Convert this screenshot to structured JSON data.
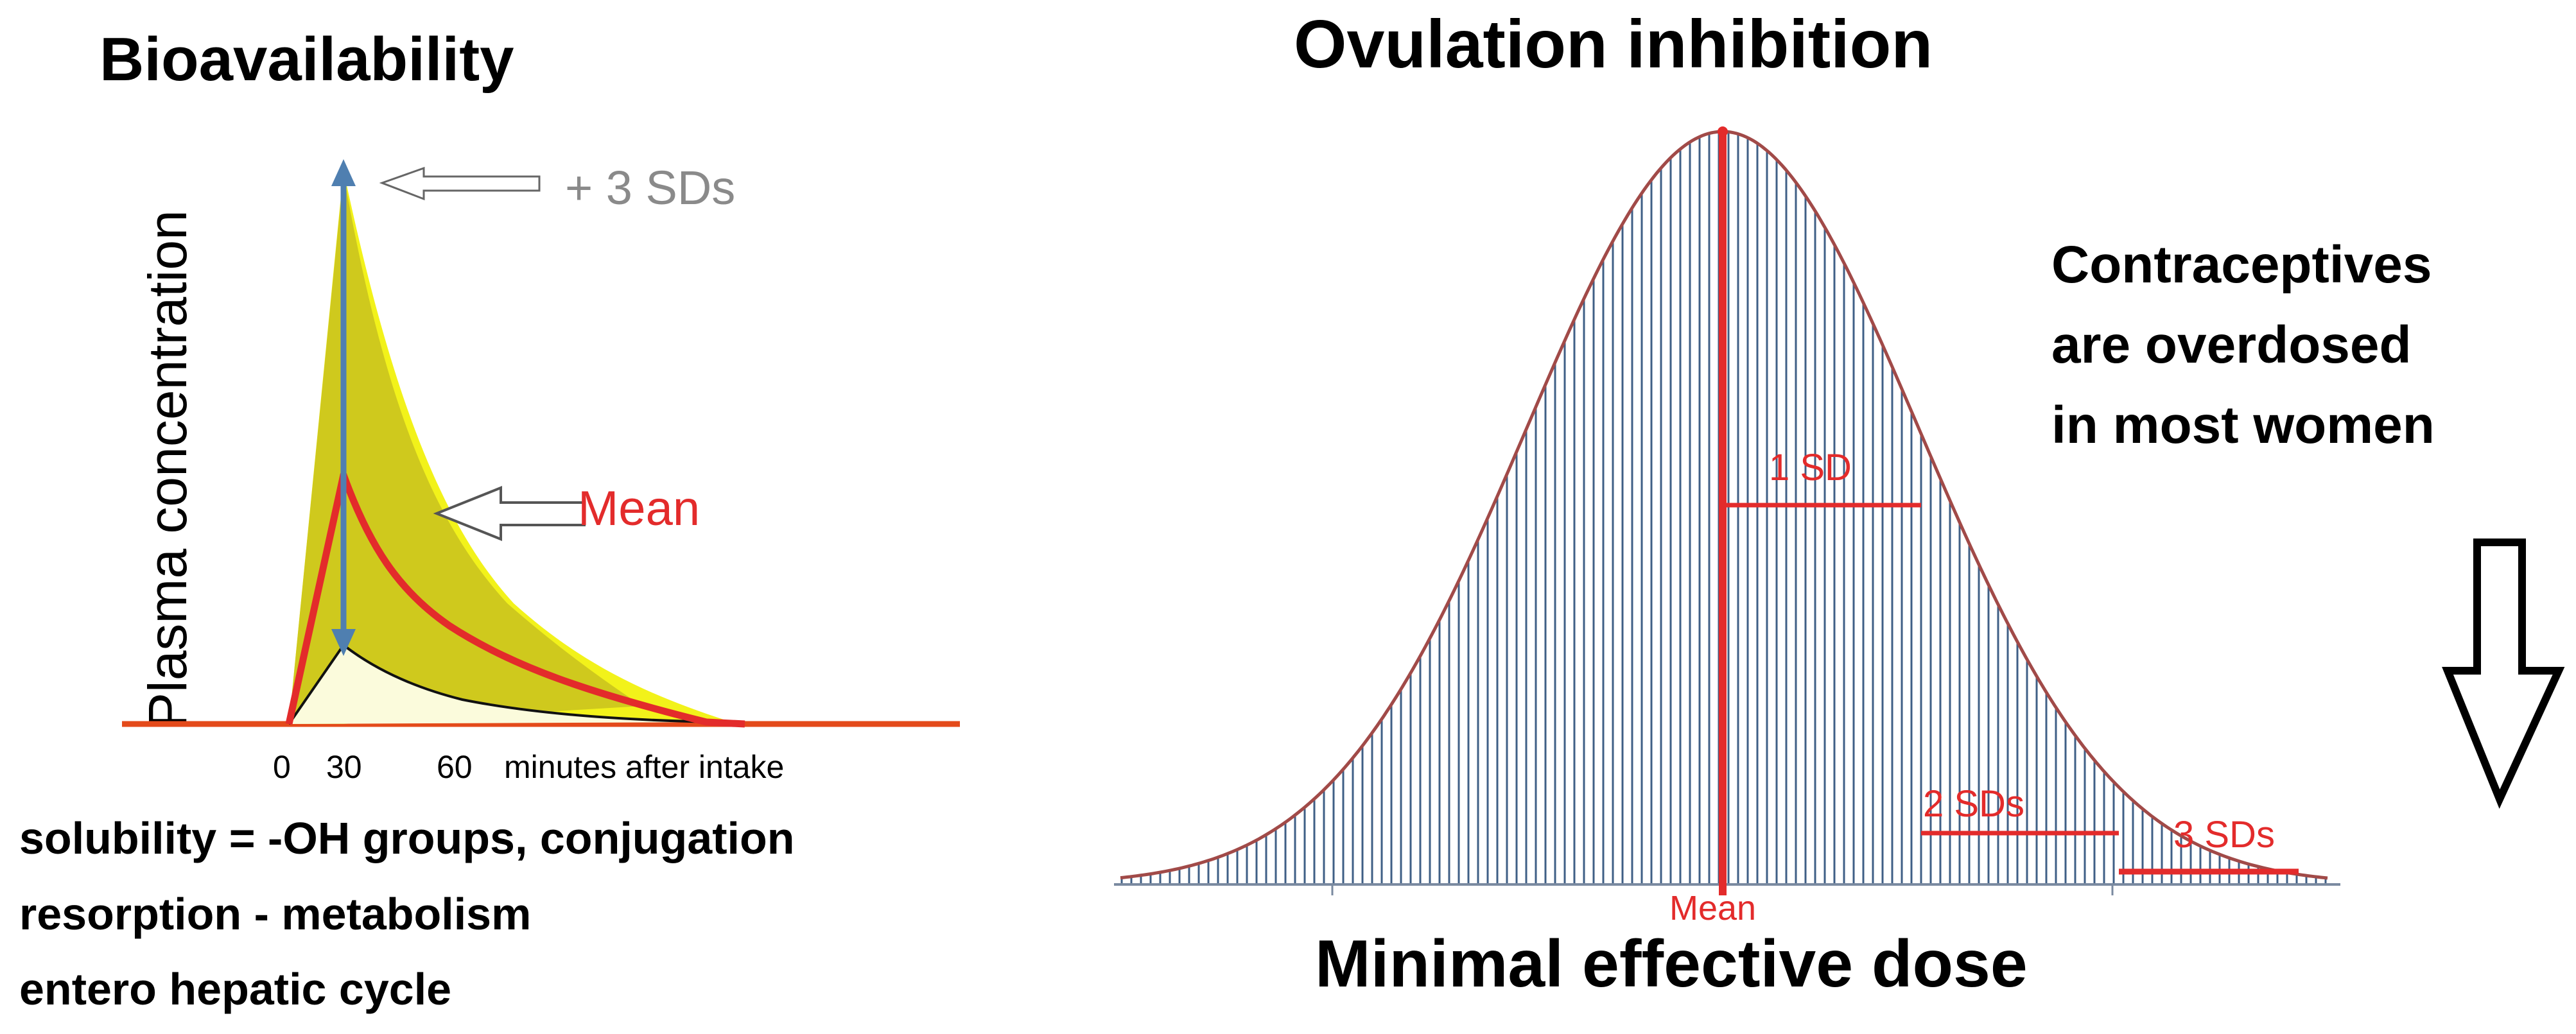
{
  "left_panel": {
    "title": "Bioavailability",
    "y_axis_label": "Plasma concentration",
    "upper_annotation": "+ 3 SDs",
    "mean_annotation": "Mean",
    "x_ticks": [
      "0",
      "30",
      "60"
    ],
    "x_axis_label": "minutes after intake",
    "notes": [
      "solubility = -OH groups, conjugation",
      "resorption - metabolism",
      "entero hepatic cycle"
    ]
  },
  "right_panel": {
    "title": "Ovulation inhibition",
    "sd_labels": [
      "1 SD",
      "2 SDs",
      "3 SDs"
    ],
    "mean_label": "Mean",
    "x_axis_label": "Minimal effective dose",
    "conclusion": [
      "Contraceptives",
      "are overdosed",
      "in most women"
    ]
  },
  "colors": {
    "mean_red": "#e32b2b",
    "sd_grey": "#8a8a8a",
    "band_yellow": "#f2f21a",
    "band_olive": "#c9c21f",
    "arrow_blue": "#4f7fb0",
    "curve_outline": "#a14a48",
    "hatch_blue": "#3f5f86"
  }
}
